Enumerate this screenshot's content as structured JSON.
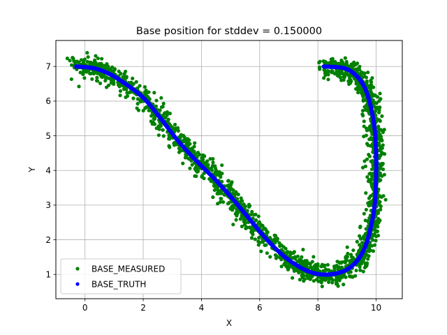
{
  "chart_data": {
    "type": "scatter",
    "title": "Base position for stddev = 0.150000",
    "xlabel": "X",
    "ylabel": "Y",
    "xlim": [
      -1.0,
      10.9
    ],
    "ylim": [
      0.3,
      7.75
    ],
    "xticks": [
      0,
      2,
      4,
      6,
      8,
      10
    ],
    "yticks": [
      1,
      2,
      3,
      4,
      5,
      6,
      7
    ],
    "grid": true,
    "legend_position": "lower-left",
    "stddev": 0.15,
    "truth_path": [
      [
        -0.3,
        7.0
      ],
      [
        0.3,
        6.95
      ],
      [
        0.8,
        6.8
      ],
      [
        1.3,
        6.55
      ],
      [
        2.0,
        6.1
      ],
      [
        2.6,
        5.5
      ],
      [
        3.2,
        4.85
      ],
      [
        3.8,
        4.3
      ],
      [
        4.4,
        3.8
      ],
      [
        5.0,
        3.25
      ],
      [
        5.6,
        2.65
      ],
      [
        6.2,
        2.05
      ],
      [
        6.8,
        1.55
      ],
      [
        7.4,
        1.2
      ],
      [
        7.9,
        1.03
      ],
      [
        8.4,
        1.0
      ],
      [
        8.9,
        1.1
      ],
      [
        9.3,
        1.35
      ],
      [
        9.6,
        1.75
      ],
      [
        9.8,
        2.3
      ],
      [
        9.95,
        3.0
      ],
      [
        10.0,
        3.8
      ],
      [
        10.0,
        4.5
      ],
      [
        9.95,
        5.2
      ],
      [
        9.8,
        5.9
      ],
      [
        9.6,
        6.4
      ],
      [
        9.3,
        6.75
      ],
      [
        8.9,
        6.95
      ],
      [
        8.2,
        7.0
      ]
    ],
    "series": [
      {
        "name": "BASE_MEASURED",
        "color": "#008000",
        "marker": "point",
        "samples": 2000
      },
      {
        "name": "BASE_TRUTH",
        "color": "#0000ff",
        "marker": "point",
        "samples": 800
      }
    ]
  }
}
